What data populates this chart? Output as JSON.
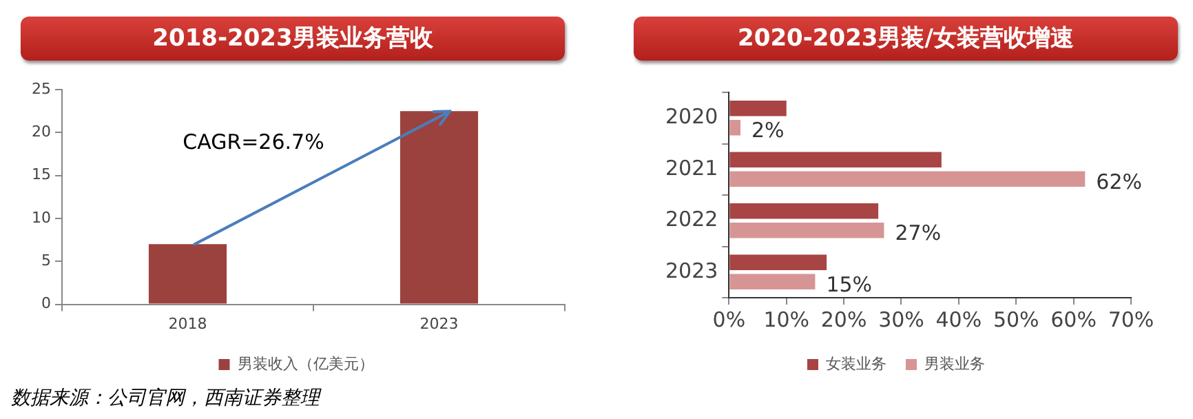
{
  "chart_data": [
    {
      "type": "bar",
      "title": "2018-2023男装业务营收",
      "categories": [
        "2018",
        "2023"
      ],
      "series": [
        {
          "name": "男装收入（亿美元）",
          "color": "#9b423f",
          "values": [
            7,
            22.5
          ]
        }
      ],
      "ylim": [
        0,
        25
      ],
      "yticks": [
        0,
        5,
        10,
        15,
        20,
        25
      ],
      "grid": false,
      "legend": "bottom",
      "annotations": [
        "CAGR=26.7%",
        "数据来源：公司官网，西南证券整理"
      ]
    },
    {
      "type": "bar",
      "orientation": "horizontal",
      "title": "2020-2023男装/女装营收增速",
      "categories": [
        "2020",
        "2021",
        "2022",
        "2023"
      ],
      "series": [
        {
          "name": "女装业务",
          "color": "#a84444",
          "values": [
            10,
            37,
            26,
            17
          ]
        },
        {
          "name": "男装业务",
          "color": "#d69594",
          "values": [
            2,
            62,
            27,
            15
          ],
          "value_labels": [
            "2%",
            "62%",
            "27%",
            "15%"
          ]
        }
      ],
      "xlim": [
        0,
        70
      ],
      "xticks": [
        {
          "value": 0,
          "label": "0%"
        },
        {
          "value": 10,
          "label": "10%"
        },
        {
          "value": 20,
          "label": "20%"
        },
        {
          "value": 30,
          "label": "30%"
        },
        {
          "value": 40,
          "label": "40%"
        },
        {
          "value": 50,
          "label": "50%"
        },
        {
          "value": 60,
          "label": "60%"
        },
        {
          "value": 70,
          "label": "70%"
        }
      ],
      "grid": false,
      "legend": "bottom"
    }
  ]
}
